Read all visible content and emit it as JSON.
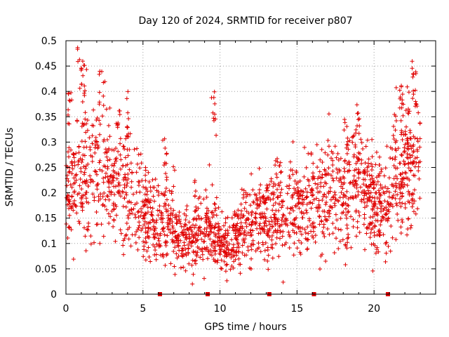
{
  "chart_data": {
    "type": "scatter",
    "title": "Day 120 of 2024, SRMTID for receiver p807",
    "xlabel": "GPS time / hours",
    "ylabel": "SRMTID / TECUs",
    "xlim": [
      0,
      24
    ],
    "ylim": [
      0,
      0.5
    ],
    "x_ticks": [
      0,
      5,
      10,
      15,
      20
    ],
    "x_tick_labels": [
      "0",
      "5",
      "10",
      "15",
      "20"
    ],
    "y_ticks": [
      0,
      0.05,
      0.1,
      0.15,
      0.2,
      0.25,
      0.3,
      0.35,
      0.4,
      0.45,
      0.5
    ],
    "y_tick_labels": [
      "0",
      "0.05",
      "0.1",
      "0.15",
      "0.2",
      "0.25",
      "0.3",
      "0.35",
      "0.4",
      "0.45",
      "0.5"
    ],
    "grid": true,
    "marker": "plus",
    "color": "#e00000",
    "series": [
      {
        "name": "SRMTID",
        "trend": [
          [
            0.0,
            0.2
          ],
          [
            0.5,
            0.22
          ],
          [
            1.0,
            0.23
          ],
          [
            1.5,
            0.24
          ],
          [
            2.0,
            0.24
          ],
          [
            2.5,
            0.22
          ],
          [
            3.0,
            0.21
          ],
          [
            3.5,
            0.22
          ],
          [
            4.0,
            0.21
          ],
          [
            4.5,
            0.18
          ],
          [
            5.0,
            0.16
          ],
          [
            5.5,
            0.15
          ],
          [
            6.0,
            0.14
          ],
          [
            6.5,
            0.14
          ],
          [
            7.0,
            0.13
          ],
          [
            7.5,
            0.11
          ],
          [
            8.0,
            0.1
          ],
          [
            8.5,
            0.11
          ],
          [
            9.0,
            0.12
          ],
          [
            9.5,
            0.13
          ],
          [
            10.0,
            0.1
          ],
          [
            10.5,
            0.09
          ],
          [
            11.0,
            0.11
          ],
          [
            11.5,
            0.13
          ],
          [
            12.0,
            0.14
          ],
          [
            12.5,
            0.15
          ],
          [
            13.0,
            0.15
          ],
          [
            13.5,
            0.16
          ],
          [
            14.0,
            0.16
          ],
          [
            14.5,
            0.17
          ],
          [
            15.0,
            0.17
          ],
          [
            15.5,
            0.17
          ],
          [
            16.0,
            0.18
          ],
          [
            16.5,
            0.19
          ],
          [
            17.0,
            0.19
          ],
          [
            17.5,
            0.2
          ],
          [
            18.0,
            0.21
          ],
          [
            18.5,
            0.21
          ],
          [
            19.0,
            0.22
          ],
          [
            19.5,
            0.2
          ],
          [
            20.0,
            0.17
          ],
          [
            20.5,
            0.17
          ],
          [
            21.0,
            0.19
          ],
          [
            21.5,
            0.22
          ],
          [
            22.0,
            0.25
          ],
          [
            22.5,
            0.26
          ],
          [
            23.0,
            0.27
          ]
        ],
        "peaks": [
          [
            0.25,
            0.4
          ],
          [
            0.9,
            0.49
          ],
          [
            1.2,
            0.46
          ],
          [
            2.3,
            0.44
          ],
          [
            3.4,
            0.38
          ],
          [
            4.1,
            0.4
          ],
          [
            5.2,
            0.26
          ],
          [
            6.4,
            0.31
          ],
          [
            8.5,
            0.23
          ],
          [
            9.6,
            0.4
          ],
          [
            13.8,
            0.28
          ],
          [
            18.2,
            0.35
          ],
          [
            18.9,
            0.38
          ],
          [
            21.3,
            0.36
          ],
          [
            21.8,
            0.43
          ],
          [
            22.6,
            0.46
          ],
          [
            22.1,
            0.37
          ]
        ],
        "x_range": [
          0.0,
          23.0
        ],
        "point_count": 2000
      }
    ],
    "flag_markers_x": [
      6.1,
      9.2,
      13.2,
      16.1,
      20.9
    ]
  }
}
